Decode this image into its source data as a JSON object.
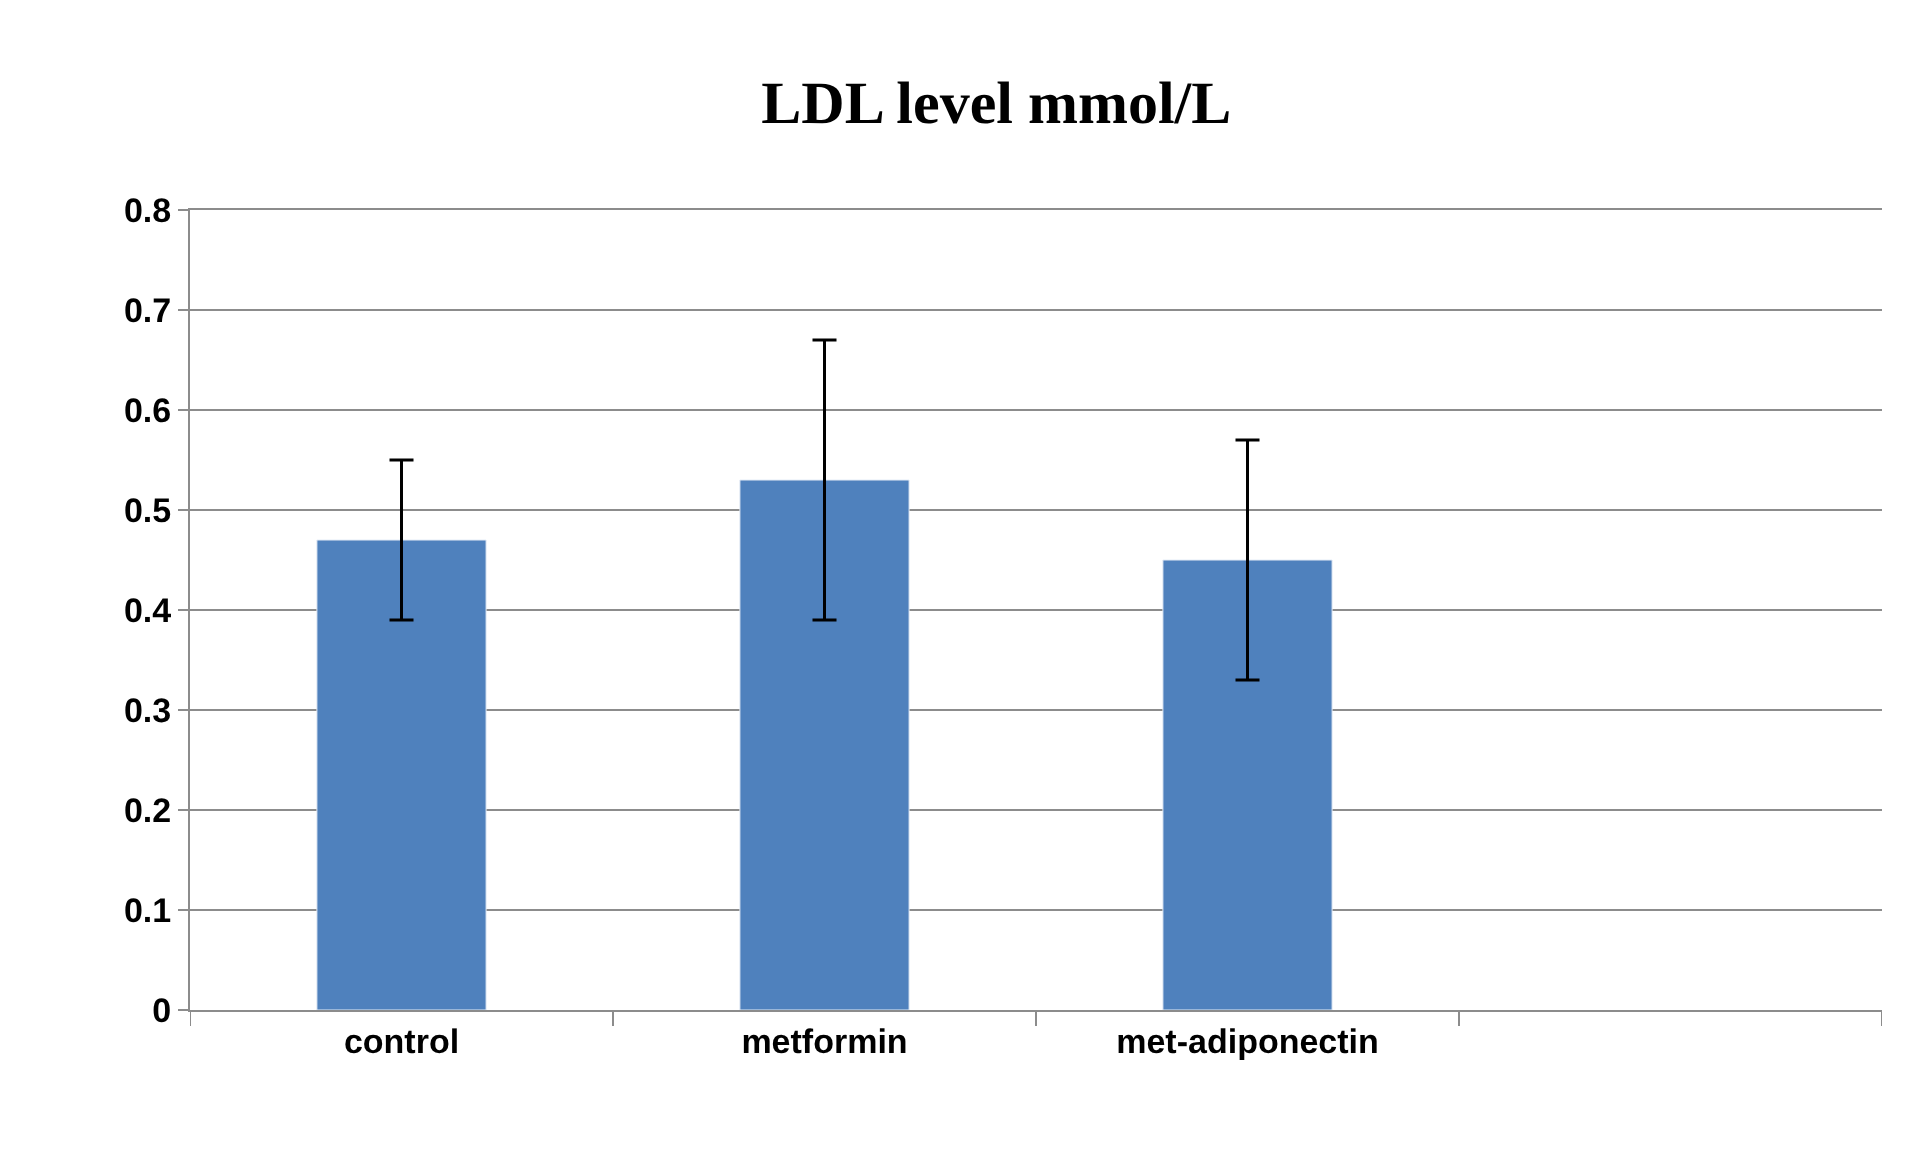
{
  "chart_data": {
    "type": "bar",
    "title": "LDL level mmol/L",
    "categories": [
      "control",
      "metformin",
      "met-adiponectin",
      null
    ],
    "series": [
      {
        "color": "#4f81bd",
        "values": [
          0.47,
          0.53,
          0.45,
          null
        ],
        "errors": [
          0.08,
          0.14,
          0.12,
          null
        ]
      }
    ],
    "ylim": [
      0,
      0.8
    ],
    "yticks": [
      0,
      0.1,
      0.2,
      0.3,
      0.4,
      0.5,
      0.6,
      0.7,
      0.8
    ],
    "grid": "y"
  }
}
